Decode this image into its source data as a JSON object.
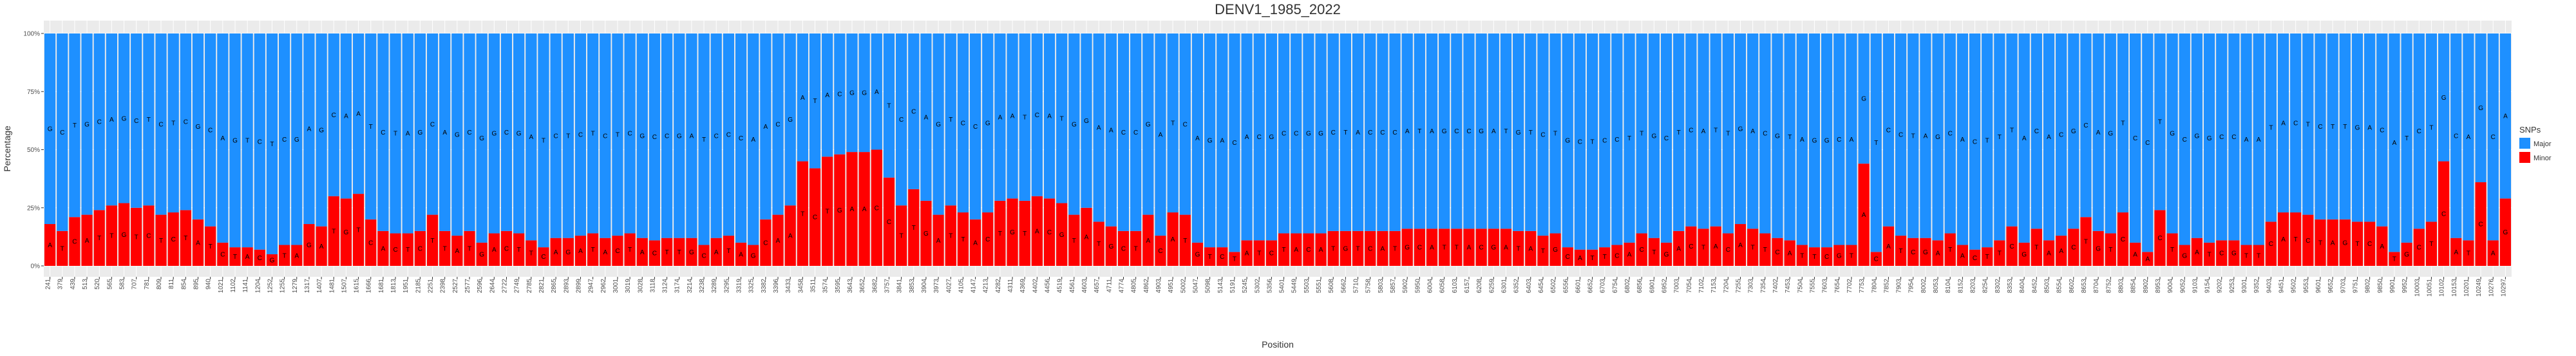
{
  "chart_data": {
    "type": "stacked_bar",
    "title": "DENV1_1985_2022",
    "x_label": "Position",
    "y_label": "Percentage",
    "legend_title": "SNPs",
    "legend_position": "right",
    "grid": true,
    "ylim": [
      0,
      100
    ],
    "yticks": [
      {
        "value": 0,
        "label": "0%"
      },
      {
        "value": 25,
        "label": "25%"
      },
      {
        "value": 50,
        "label": "50%"
      },
      {
        "value": 75,
        "label": "75%"
      },
      {
        "value": 100,
        "label": "100%"
      }
    ],
    "categories": [
      241,
      379,
      439,
      513,
      520,
      565,
      583,
      707,
      781,
      809,
      811,
      854,
      895,
      940,
      1021,
      1102,
      1141,
      1204,
      1252,
      1255,
      1279,
      1317,
      1407,
      1481,
      1507,
      1615,
      1666,
      1681,
      1813,
      1951,
      2185,
      2251,
      2398,
      2527,
      2577,
      2596,
      2644,
      2722,
      2749,
      2785,
      2821,
      2865,
      2893,
      2899,
      2947,
      2962,
      3001,
      3019,
      3028,
      3118,
      3124,
      3174,
      3214,
      3238,
      3289,
      3295,
      3319,
      3325,
      3382,
      3396,
      3433,
      3458,
      3511,
      3574,
      3595,
      3643,
      3652,
      3682,
      3757,
      3841,
      3853,
      3904,
      3973,
      4027,
      4105,
      4147,
      4213,
      4282,
      4311,
      4369,
      4402,
      4456,
      4519,
      4561,
      4603,
      4657,
      4711,
      4774,
      4805,
      4862,
      4903,
      4951,
      5002,
      5047,
      5098,
      5143,
      5191,
      5245,
      5302,
      5356,
      5401,
      5449,
      5503,
      5551,
      5608,
      5662,
      5710,
      5758,
      5803,
      5857,
      5902,
      5950,
      6004,
      6058,
      6103,
      6157,
      6208,
      6259,
      6301,
      6352,
      6403,
      6454,
      6502,
      6556,
      6601,
      6652,
      6703,
      6754,
      6802,
      6856,
      6901,
      6952,
      7003,
      7054,
      7102,
      7153,
      7204,
      7255,
      7303,
      7354,
      7402,
      7453,
      7504,
      7555,
      7603,
      7654,
      7702,
      7753,
      7804,
      7852,
      7903,
      7954,
      8002,
      8053,
      8104,
      8152,
      8203,
      8254,
      8302,
      8353,
      8404,
      8452,
      8503,
      8554,
      8602,
      8653,
      8704,
      8752,
      8803,
      8854,
      8902,
      8953,
      9004,
      9052,
      9103,
      9154,
      9202,
      9253,
      9301,
      9352,
      9403,
      9451,
      9502,
      9553,
      9601,
      9652,
      9703,
      9751,
      9802,
      9850,
      9901,
      9952,
      10003,
      10051,
      10102,
      10153,
      10201,
      10249,
      10276,
      10297
    ],
    "series": [
      {
        "name": "Minor",
        "color": "#ff0000",
        "values": [
          18,
          15,
          21,
          22,
          24,
          26,
          27,
          25,
          26,
          22,
          23,
          24,
          20,
          17,
          10,
          8,
          8,
          7,
          5,
          9,
          9,
          18,
          17,
          30,
          29,
          31,
          20,
          15,
          14,
          14,
          15,
          22,
          15,
          13,
          15,
          10,
          14,
          15,
          14,
          11,
          8,
          12,
          12,
          13,
          14,
          12,
          13,
          14,
          12,
          11,
          12,
          12,
          12,
          9,
          12,
          13,
          10,
          9,
          20,
          22,
          26,
          45,
          42,
          47,
          48,
          49,
          49,
          50,
          38,
          26,
          33,
          28,
          22,
          26,
          23,
          20,
          23,
          28,
          29,
          28,
          30,
          29,
          27,
          22,
          25,
          19,
          17,
          15,
          15,
          22,
          13,
          23,
          22,
          10,
          8,
          8,
          6,
          11,
          11,
          11,
          14,
          14,
          14,
          14,
          15,
          15,
          15,
          15,
          15,
          15,
          16,
          16,
          16,
          16,
          16,
          16,
          16,
          16,
          16,
          15,
          15,
          13,
          14,
          8,
          7,
          7,
          8,
          9,
          10,
          14,
          12,
          10,
          15,
          17,
          16,
          17,
          14,
          18,
          16,
          14,
          12,
          11,
          9,
          8,
          8,
          9,
          9,
          44,
          6,
          17,
          13,
          12,
          12,
          11,
          14,
          9,
          7,
          8,
          11,
          17,
          10,
          16,
          11,
          13,
          16,
          21,
          15,
          14,
          23,
          10,
          6,
          24,
          14,
          9,
          12,
          10,
          11,
          11,
          9,
          9,
          19,
          23,
          23,
          22,
          20,
          20,
          20,
          19,
          19,
          17,
          6,
          10,
          16,
          19,
          45,
          12,
          11,
          36,
          11,
          29
        ],
        "labels": [
          "A",
          "T",
          "C",
          "A",
          "T",
          "T",
          "G",
          "T",
          "C",
          "T",
          "C",
          "T",
          "A",
          "T",
          "C",
          "T",
          "A",
          "C",
          "G",
          "T",
          "A",
          "G",
          "A",
          "T",
          "G",
          "T",
          "C",
          "A",
          "C",
          "T",
          "C",
          "T",
          "T",
          "A",
          "T",
          "G",
          "A",
          "C",
          "T",
          "T",
          "C",
          "A",
          "G",
          "A",
          "T",
          "A",
          "C",
          "T",
          "A",
          "C",
          "T",
          "T",
          "G",
          "C",
          "A",
          "T",
          "A",
          "G",
          "C",
          "A",
          "A",
          "T",
          "C",
          "T",
          "G",
          "A",
          "A",
          "C",
          "C",
          "T",
          "T",
          "G",
          "A",
          "T",
          "T",
          "A",
          "C",
          "T",
          "G",
          "T",
          "A",
          "C",
          "G",
          "T",
          "A",
          "T",
          "G",
          "C",
          "T",
          "A",
          "C",
          "A",
          "T",
          "G",
          "T",
          "C",
          "T",
          "A",
          "T",
          "C",
          "T",
          "A",
          "C",
          "A",
          "T",
          "G",
          "T",
          "C",
          "A",
          "T",
          "G",
          "C",
          "A",
          "T",
          "T",
          "A",
          "C",
          "G",
          "A",
          "T",
          "A",
          "T",
          "G",
          "C",
          "A",
          "T",
          "T",
          "C",
          "A",
          "C",
          "T",
          "G",
          "A",
          "C",
          "T",
          "A",
          "C",
          "A",
          "T",
          "T",
          "C",
          "A",
          "T",
          "T",
          "C",
          "G",
          "T",
          "A",
          "C",
          "A",
          "T",
          "C",
          "G",
          "A",
          "T",
          "A",
          "C",
          "T",
          "T",
          "C",
          "G",
          "T",
          "A",
          "A",
          "C",
          "T",
          "G",
          "T",
          "C",
          "A",
          "A",
          "C",
          "T",
          "G",
          "A",
          "T",
          "C",
          "G",
          "T",
          "T",
          "C",
          "A",
          "T",
          "C",
          "T",
          "A",
          "G",
          "T",
          "C",
          "A",
          "T",
          "G",
          "C",
          "T",
          "C",
          "A",
          "T",
          "C",
          "A",
          "G"
        ]
      },
      {
        "name": "Major",
        "color": "#1e90ff",
        "values": [
          82,
          85,
          79,
          78,
          76,
          74,
          73,
          75,
          74,
          78,
          77,
          76,
          80,
          83,
          90,
          92,
          92,
          93,
          95,
          91,
          91,
          82,
          83,
          70,
          71,
          69,
          80,
          85,
          86,
          86,
          85,
          78,
          85,
          87,
          85,
          90,
          86,
          85,
          86,
          89,
          92,
          88,
          88,
          87,
          86,
          88,
          87,
          86,
          88,
          89,
          88,
          88,
          88,
          91,
          88,
          87,
          90,
          91,
          80,
          78,
          74,
          55,
          58,
          53,
          52,
          51,
          51,
          50,
          62,
          74,
          67,
          72,
          78,
          74,
          77,
          80,
          77,
          72,
          71,
          72,
          70,
          71,
          73,
          78,
          75,
          81,
          83,
          85,
          85,
          78,
          87,
          77,
          78,
          90,
          92,
          92,
          94,
          89,
          89,
          89,
          86,
          86,
          86,
          86,
          85,
          85,
          85,
          85,
          85,
          85,
          84,
          84,
          84,
          84,
          84,
          84,
          84,
          84,
          84,
          85,
          85,
          87,
          86,
          92,
          93,
          93,
          92,
          91,
          90,
          86,
          88,
          90,
          85,
          83,
          84,
          83,
          86,
          82,
          84,
          86,
          88,
          89,
          91,
          92,
          92,
          91,
          91,
          56,
          94,
          83,
          87,
          88,
          88,
          89,
          86,
          91,
          93,
          92,
          89,
          83,
          90,
          84,
          89,
          87,
          84,
          79,
          85,
          86,
          77,
          90,
          94,
          76,
          86,
          91,
          88,
          90,
          89,
          89,
          91,
          91,
          81,
          77,
          77,
          78,
          80,
          80,
          80,
          81,
          81,
          83,
          94,
          90,
          84,
          81,
          55,
          88,
          89,
          64,
          89,
          71
        ],
        "labels": [
          "G",
          "C",
          "T",
          "G",
          "C",
          "A",
          "G",
          "C",
          "T",
          "C",
          "T",
          "C",
          "G",
          "C",
          "A",
          "G",
          "T",
          "C",
          "T",
          "C",
          "G",
          "A",
          "G",
          "C",
          "A",
          "A",
          "T",
          "C",
          "T",
          "A",
          "G",
          "C",
          "A",
          "G",
          "C",
          "G",
          "G",
          "C",
          "G",
          "A",
          "T",
          "C",
          "T",
          "C",
          "T",
          "C",
          "T",
          "C",
          "G",
          "C",
          "C",
          "G",
          "A",
          "T",
          "C",
          "C",
          "C",
          "A",
          "A",
          "C",
          "G",
          "A",
          "T",
          "A",
          "C",
          "G",
          "G",
          "A",
          "T",
          "C",
          "C",
          "A",
          "G",
          "T",
          "C",
          "C",
          "G",
          "A",
          "A",
          "T",
          "C",
          "A",
          "T",
          "G",
          "G",
          "A",
          "A",
          "C",
          "C",
          "G",
          "A",
          "T",
          "C",
          "A",
          "G",
          "A",
          "C",
          "A",
          "C",
          "G",
          "C",
          "C",
          "G",
          "G",
          "C",
          "T",
          "A",
          "C",
          "C",
          "C",
          "A",
          "T",
          "A",
          "G",
          "C",
          "C",
          "G",
          "A",
          "T",
          "G",
          "T",
          "C",
          "T",
          "G",
          "C",
          "T",
          "C",
          "C",
          "T",
          "T",
          "G",
          "C",
          "T",
          "C",
          "A",
          "T",
          "T",
          "G",
          "A",
          "C",
          "G",
          "T",
          "A",
          "G",
          "G",
          "C",
          "A",
          "G",
          "T",
          "C",
          "C",
          "T",
          "A",
          "G",
          "C",
          "A",
          "C",
          "T",
          "T",
          "T",
          "A",
          "C",
          "A",
          "C",
          "G",
          "C",
          "A",
          "G",
          "T",
          "C",
          "C",
          "T",
          "G",
          "C",
          "G",
          "G",
          "C",
          "C",
          "A",
          "A",
          "T",
          "A",
          "C",
          "T",
          "C",
          "T",
          "T",
          "G",
          "A",
          "C",
          "A",
          "T",
          "C",
          "T",
          "G",
          "C",
          "A",
          "G",
          "C",
          "A"
        ]
      }
    ]
  }
}
